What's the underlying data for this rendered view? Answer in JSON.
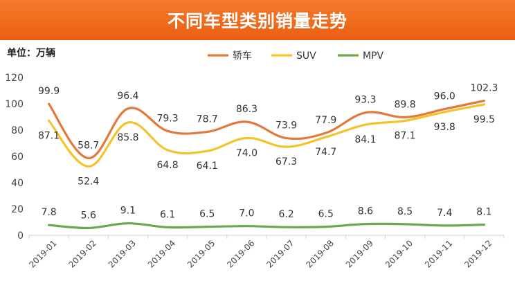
{
  "title": "不同车型类别销量走势",
  "unit_label": "单位：万辆",
  "chart_data": {
    "type": "line",
    "categories": [
      "2019-01",
      "2019-02",
      "2019-03",
      "2019-04",
      "2019-05",
      "2019-06",
      "2019-07",
      "2019-08",
      "2019-09",
      "2019-10",
      "2019-11",
      "2019-12"
    ],
    "ylim": [
      0,
      120
    ],
    "yticks": [
      0,
      20,
      40,
      60,
      80,
      100,
      120
    ],
    "grid": false,
    "legend": "top-center",
    "series": [
      {
        "name": "轿车",
        "color": "#e2783c",
        "values": [
          99.9,
          58.7,
          96.4,
          79.3,
          78.7,
          86.3,
          73.9,
          77.9,
          93.3,
          89.8,
          96.0,
          102.3
        ],
        "label_position": "above"
      },
      {
        "name": "SUV",
        "color": "#f4c32a",
        "values": [
          87.1,
          52.4,
          85.8,
          64.8,
          64.1,
          74.0,
          67.3,
          74.7,
          84.1,
          87.1,
          93.8,
          99.5
        ],
        "label_position": "below"
      },
      {
        "name": "MPV",
        "color": "#6aa84f",
        "values": [
          7.8,
          5.6,
          9.1,
          6.1,
          6.5,
          7.0,
          6.2,
          6.5,
          8.6,
          8.5,
          7.4,
          8.1
        ],
        "label_position": "above"
      }
    ]
  }
}
